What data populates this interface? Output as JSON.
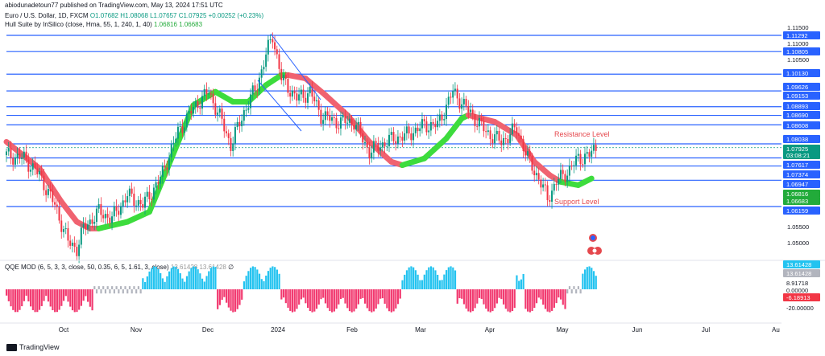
{
  "attribution": "abiodunadetoun77 published on TradingView.com, May 13, 2024 17:51 UTC",
  "legend": {
    "symbol": "Euro / U.S. Dollar, 1D, FXCM",
    "ohlc": "O1.07682 H1.08068 L1.07657 C1.07925 +0.00252 (+0.23%)",
    "indicator": "Hull Suite by InSilico (close, Hma, 55, 1, 240, 1, 40)",
    "indicator_vals": "1.06816 1.06683",
    "osc": "QQE MOD (6, 5, 3, 3, close, 50, 0.35, 6, 5, 1.61, 3, close)",
    "osc_vals": "13.61428 13.61428",
    "osc_sym": "∅"
  },
  "annotations": {
    "resistance": "Resistance Level",
    "support": "Support Level"
  },
  "footer": {
    "brand": "TradingView"
  },
  "colors": {
    "up": "#089981",
    "down": "#f23645",
    "hull_up": "#3ddc3d",
    "hull_down": "#f06270",
    "level": "#2962ff",
    "osc_blue": "#22c3f0",
    "osc_red": "#f23a70",
    "osc_gray": "#b2b5be"
  },
  "chart_data": {
    "type": "candlestick",
    "title": "Euro / U.S. Dollar, 1D, FXCM",
    "x_ticks": [
      "Oct",
      "Nov",
      "Dec",
      "2024",
      "Feb",
      "Mar",
      "Apr",
      "May",
      "Jun",
      "Jul",
      "Au"
    ],
    "y_ticks": [
      "1.11500",
      "1.11000",
      "1.10500",
      "1.05500",
      "1.05000"
    ],
    "levels": [
      {
        "value": "1.11292",
        "color": "#2962ff"
      },
      {
        "value": "1.10805",
        "color": "#2962ff"
      },
      {
        "value": "1.10130",
        "color": "#2962ff"
      },
      {
        "value": "1.09626",
        "color": "#2962ff"
      },
      {
        "value": "1.09153",
        "color": "#2962ff"
      },
      {
        "value": "1.08893",
        "color": "#2962ff"
      },
      {
        "value": "1.08690",
        "color": "#2962ff"
      },
      {
        "value": "1.08608",
        "color": "#2962ff"
      },
      {
        "value": "1.08038",
        "color": "#2962ff"
      },
      {
        "value": "1.07925",
        "color": "#089981"
      },
      {
        "value": "03:08:21",
        "color": "#089981"
      },
      {
        "value": "1.07617",
        "color": "#2962ff"
      },
      {
        "value": "1.07374",
        "color": "#2962ff"
      },
      {
        "value": "1.06947",
        "color": "#2962ff"
      },
      {
        "value": "1.06816",
        "color": "#22ab3a"
      },
      {
        "value": "1.06683",
        "color": "#22ab3a"
      },
      {
        "value": "1.06159",
        "color": "#2962ff"
      }
    ],
    "hlines": [
      1.11292,
      1.10805,
      1.1013,
      1.09626,
      1.09153,
      1.08893,
      1.08608,
      1.08038,
      1.07617,
      1.07374,
      1.06947,
      1.06159
    ],
    "anchors": [
      [
        0,
        1.077
      ],
      [
        8,
        1.076
      ],
      [
        15,
        1.071
      ],
      [
        22,
        1.062
      ],
      [
        28,
        1.051
      ],
      [
        32,
        1.049
      ],
      [
        35,
        1.055
      ],
      [
        42,
        1.06
      ],
      [
        48,
        1.058
      ],
      [
        55,
        1.065
      ],
      [
        62,
        1.062
      ],
      [
        70,
        1.07
      ],
      [
        78,
        1.084
      ],
      [
        86,
        1.092
      ],
      [
        92,
        1.096
      ],
      [
        98,
        1.087
      ],
      [
        102,
        1.08
      ],
      [
        108,
        1.09
      ],
      [
        114,
        1.098
      ],
      [
        118,
        1.107
      ],
      [
        121,
        1.113
      ],
      [
        125,
        1.1
      ],
      [
        132,
        1.094
      ],
      [
        138,
        1.096
      ],
      [
        143,
        1.089
      ],
      [
        150,
        1.087
      ],
      [
        158,
        1.087
      ],
      [
        165,
        1.078
      ],
      [
        170,
        1.08
      ],
      [
        176,
        1.082
      ],
      [
        182,
        1.083
      ],
      [
        190,
        1.086
      ],
      [
        196,
        1.086
      ],
      [
        203,
        1.096
      ],
      [
        208,
        1.092
      ],
      [
        213,
        1.088
      ],
      [
        218,
        1.084
      ],
      [
        225,
        1.081
      ],
      [
        232,
        1.085
      ],
      [
        237,
        1.076
      ],
      [
        242,
        1.07
      ],
      [
        246,
        1.064
      ],
      [
        250,
        1.069
      ],
      [
        255,
        1.072
      ],
      [
        260,
        1.076
      ],
      [
        265,
        1.077
      ],
      [
        268,
        1.0792
      ]
    ],
    "hull": [
      [
        0,
        1.081,
        "down"
      ],
      [
        15,
        1.073,
        "down"
      ],
      [
        25,
        1.063,
        "down"
      ],
      [
        32,
        1.057,
        "down"
      ],
      [
        38,
        1.055,
        "down"
      ],
      [
        42,
        1.055,
        "up"
      ],
      [
        55,
        1.057,
        "up"
      ],
      [
        65,
        1.06,
        "up"
      ],
      [
        75,
        1.076,
        "up"
      ],
      [
        85,
        1.092,
        "up"
      ],
      [
        95,
        1.096,
        "up"
      ],
      [
        103,
        1.093,
        "up"
      ],
      [
        110,
        1.093,
        "up"
      ],
      [
        118,
        1.098,
        "up"
      ],
      [
        125,
        1.101,
        "up"
      ],
      [
        128,
        1.101,
        "down"
      ],
      [
        136,
        1.1,
        "down"
      ],
      [
        145,
        1.095,
        "down"
      ],
      [
        155,
        1.089,
        "down"
      ],
      [
        165,
        1.081,
        "down"
      ],
      [
        175,
        1.075,
        "down"
      ],
      [
        180,
        1.074,
        "up"
      ],
      [
        190,
        1.076,
        "up"
      ],
      [
        200,
        1.082,
        "up"
      ],
      [
        207,
        1.088,
        "up"
      ],
      [
        210,
        1.089,
        "down"
      ],
      [
        222,
        1.087,
        "down"
      ],
      [
        232,
        1.083,
        "down"
      ],
      [
        240,
        1.075,
        "down"
      ],
      [
        247,
        1.071,
        "down"
      ],
      [
        252,
        1.069,
        "up"
      ],
      [
        260,
        1.068,
        "up"
      ],
      [
        266,
        1.07,
        "up"
      ]
    ],
    "osc_ticks": [
      "13.61428",
      "13.61428",
      "8.91718",
      "0.00000",
      "-6.18913",
      "-20.00000"
    ]
  }
}
